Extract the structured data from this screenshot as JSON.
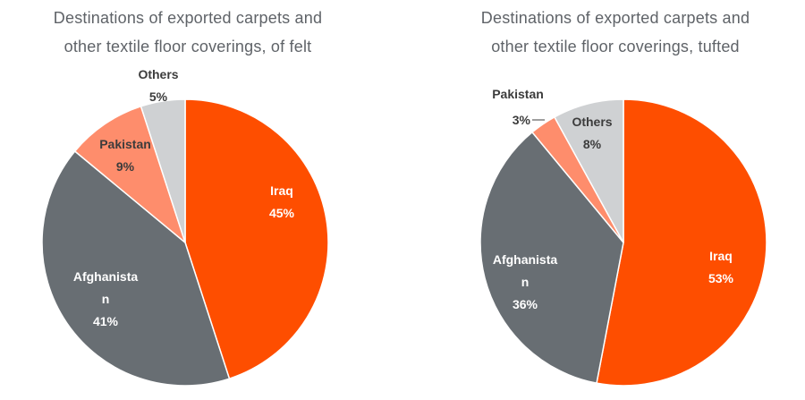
{
  "chart_data": [
    {
      "type": "pie",
      "title_line1": "Destinations of exported carpets and",
      "title_line2": "other textile floor coverings, of felt",
      "slices": [
        {
          "name": "Iraq",
          "label_line1": "Iraq",
          "label_line2": "",
          "percent_label": "45%",
          "value": 45,
          "color": "#fe4e00"
        },
        {
          "name": "Afghanistan",
          "label_line1": "Afghanista",
          "label_line2": "n",
          "percent_label": "41%",
          "value": 41,
          "color": "#686e73"
        },
        {
          "name": "Pakistan",
          "label_line1": "Pakistan",
          "label_line2": "",
          "percent_label": "9%",
          "value": 9,
          "color": "#fe8d6c"
        },
        {
          "name": "Others",
          "label_line1": "Others",
          "label_line2": "",
          "percent_label": "5%",
          "value": 5,
          "color": "#cfd1d3"
        }
      ]
    },
    {
      "type": "pie",
      "title_line1": "Destinations of exported carpets and",
      "title_line2": "other textile floor coverings, tufted",
      "slices": [
        {
          "name": "Iraq",
          "label_line1": "Iraq",
          "label_line2": "",
          "percent_label": "53%",
          "value": 53,
          "color": "#fe4e00"
        },
        {
          "name": "Afghanistan",
          "label_line1": "Afghanista",
          "label_line2": "n",
          "percent_label": "36%",
          "value": 36,
          "color": "#686e73"
        },
        {
          "name": "Pakistan",
          "label_line1": "Pakistan",
          "label_line2": "",
          "percent_label": "3%",
          "value": 3,
          "color": "#fe8d6c"
        },
        {
          "name": "Others",
          "label_line1": "Others",
          "label_line2": "",
          "percent_label": "8%",
          "value": 8,
          "color": "#cfd1d3"
        }
      ]
    }
  ]
}
